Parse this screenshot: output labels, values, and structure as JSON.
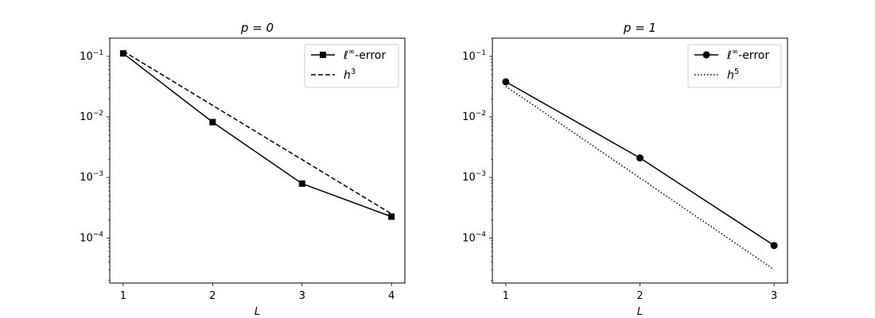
{
  "chart_data": [
    {
      "type": "line",
      "title": "p = 0",
      "xlabel": "L",
      "ylabel": "",
      "yscale": "log",
      "xlim": [
        0.85,
        4.15
      ],
      "ylim": [
        1.8e-05,
        0.2
      ],
      "xticks": [
        1,
        2,
        3,
        4
      ],
      "yticks": [
        {
          "value": 0.0001,
          "mantissa": "10",
          "exponent": "−4"
        },
        {
          "value": 0.001,
          "mantissa": "10",
          "exponent": "−3"
        },
        {
          "value": 0.01,
          "mantissa": "10",
          "exponent": "−2"
        },
        {
          "value": 0.1,
          "mantissa": "10",
          "exponent": "−1"
        }
      ],
      "legend_position": "top-right",
      "grid": false,
      "series": [
        {
          "name": "ℓ∞-error",
          "style": "solid",
          "marker": "square",
          "x": [
            1,
            2,
            3,
            4
          ],
          "values": [
            0.112,
            0.0082,
            0.00079,
            0.000225
          ]
        },
        {
          "name": "h3",
          "style": "dashed",
          "marker": "none",
          "x": [
            1,
            4
          ],
          "values": [
            0.122,
            0.00025
          ]
        }
      ],
      "legend": [
        {
          "prefix": "ℓ",
          "sup": "∞",
          "suffix": "-error"
        },
        {
          "prefix": "h",
          "sup": "3",
          "suffix": ""
        }
      ]
    },
    {
      "type": "line",
      "title": "p = 1",
      "xlabel": "L",
      "ylabel": "",
      "yscale": "log",
      "xlim": [
        0.9,
        3.1
      ],
      "ylim": [
        1.8e-05,
        0.2
      ],
      "xticks": [
        1,
        2,
        3
      ],
      "yticks": [
        {
          "value": 0.0001,
          "mantissa": "10",
          "exponent": "−4"
        },
        {
          "value": 0.001,
          "mantissa": "10",
          "exponent": "−3"
        },
        {
          "value": 0.01,
          "mantissa": "10",
          "exponent": "−2"
        },
        {
          "value": 0.1,
          "mantissa": "10",
          "exponent": "−1"
        }
      ],
      "legend_position": "top-right",
      "grid": false,
      "series": [
        {
          "name": "ℓ∞-error",
          "style": "solid",
          "marker": "circle",
          "x": [
            1,
            2,
            3
          ],
          "values": [
            0.038,
            0.0021,
            7.5e-05
          ]
        },
        {
          "name": "h5",
          "style": "dotted",
          "marker": "none",
          "x": [
            1,
            3
          ],
          "values": [
            0.032,
            3e-05
          ]
        }
      ],
      "legend": [
        {
          "prefix": "ℓ",
          "sup": "∞",
          "suffix": "-error"
        },
        {
          "prefix": "h",
          "sup": "5",
          "suffix": ""
        }
      ]
    }
  ]
}
